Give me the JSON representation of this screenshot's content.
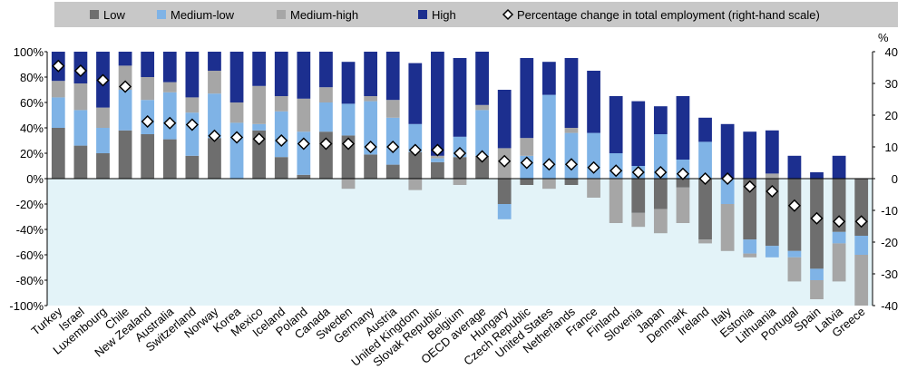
{
  "chart_data": {
    "type": "bar",
    "stacked": true,
    "categories": [
      "Turkey",
      "Israel",
      "Luxembourg",
      "Chile",
      "New Zealand",
      "Australia",
      "Switzerland",
      "Norway",
      "Korea",
      "Mexico",
      "Iceland",
      "Poland",
      "Canada",
      "Sweden",
      "Germany",
      "Austria",
      "United Kingdom",
      "Slovak Republic",
      "Belgium",
      "OECD average",
      "Hungary",
      "Czech Republic",
      "United States",
      "Netherlands",
      "France",
      "Finland",
      "Slovenia",
      "Japan",
      "Denmark",
      "Ireland",
      "Italy",
      "Estonia",
      "Lithuania",
      "Portugal",
      "Spain",
      "Latvia",
      "Greece"
    ],
    "series": [
      {
        "name": "Low",
        "color": "#6e6e6e",
        "values": [
          40,
          26,
          20,
          38,
          35,
          31,
          18,
          32,
          0,
          38,
          17,
          3,
          37,
          34,
          19,
          11,
          21,
          13,
          17,
          18,
          -20,
          -5,
          0,
          -5,
          0,
          0,
          -27,
          -24,
          -7,
          -48,
          0,
          -48,
          -53,
          -57,
          -71,
          -42,
          -45
        ]
      },
      {
        "name": "Medium-low",
        "color": "#7fb3e6",
        "values": [
          24,
          28,
          20,
          32,
          27,
          37,
          34,
          35,
          44,
          5,
          36,
          34,
          23,
          25,
          42,
          37,
          22,
          3,
          16,
          36,
          -12,
          18,
          66,
          36,
          36,
          20,
          10,
          35,
          15,
          29,
          -20,
          -11,
          -9,
          -5,
          -9,
          -9,
          -15
        ]
      },
      {
        "name": "Medium-high",
        "color": "#a6a6a6",
        "values": [
          13,
          21,
          16,
          19,
          18,
          8,
          12,
          18,
          16,
          30,
          12,
          26,
          12,
          -8,
          4,
          14,
          -9,
          2,
          -5,
          4,
          24,
          14,
          -8,
          4,
          -15,
          -35,
          -11,
          -19,
          -28,
          -3,
          -37,
          -3,
          4,
          -19,
          -15,
          -30,
          -40
        ]
      },
      {
        "name": "High",
        "color": "#1c2f8f",
        "values": [
          23,
          25,
          44,
          11,
          20,
          24,
          36,
          15,
          40,
          27,
          35,
          37,
          28,
          33,
          35,
          38,
          48,
          82,
          62,
          42,
          46,
          63,
          26,
          55,
          49,
          45,
          51,
          22,
          50,
          19,
          43,
          37,
          34,
          18,
          5,
          18,
          0
        ]
      },
      {
        "name": "Percentage change in total employment (right-hand scale)",
        "axis": "y2",
        "color": "#ffffff",
        "values": [
          35.5,
          34,
          31,
          29,
          18,
          17.5,
          17,
          13.5,
          13,
          12.5,
          12,
          11,
          11,
          11,
          10,
          10,
          9,
          9,
          8,
          7,
          5.5,
          5,
          4.5,
          4.5,
          3.5,
          2.5,
          2,
          2,
          1.5,
          0,
          0,
          -2.5,
          -4,
          -8.5,
          -12.5,
          -13.5,
          -13.5
        ]
      }
    ],
    "ylim": [
      -100,
      100
    ],
    "yticks": [
      {
        "value": -100,
        "label": "-100%"
      },
      {
        "value": -80,
        "label": "-80%"
      },
      {
        "value": -60,
        "label": "-60%"
      },
      {
        "value": -40,
        "label": "-40%"
      },
      {
        "value": -20,
        "label": "-20%"
      },
      {
        "value": 0,
        "label": "0%"
      },
      {
        "value": 20,
        "label": "20%"
      },
      {
        "value": 40,
        "label": "40%"
      },
      {
        "value": 60,
        "label": "60%"
      },
      {
        "value": 80,
        "label": "80%"
      },
      {
        "value": 100,
        "label": "100%"
      }
    ],
    "y2lim": [
      -40,
      40
    ],
    "y2ticks": [
      -40,
      -30,
      -20,
      -10,
      0,
      10,
      20,
      30,
      40
    ],
    "y2label": "%",
    "grid": false
  }
}
